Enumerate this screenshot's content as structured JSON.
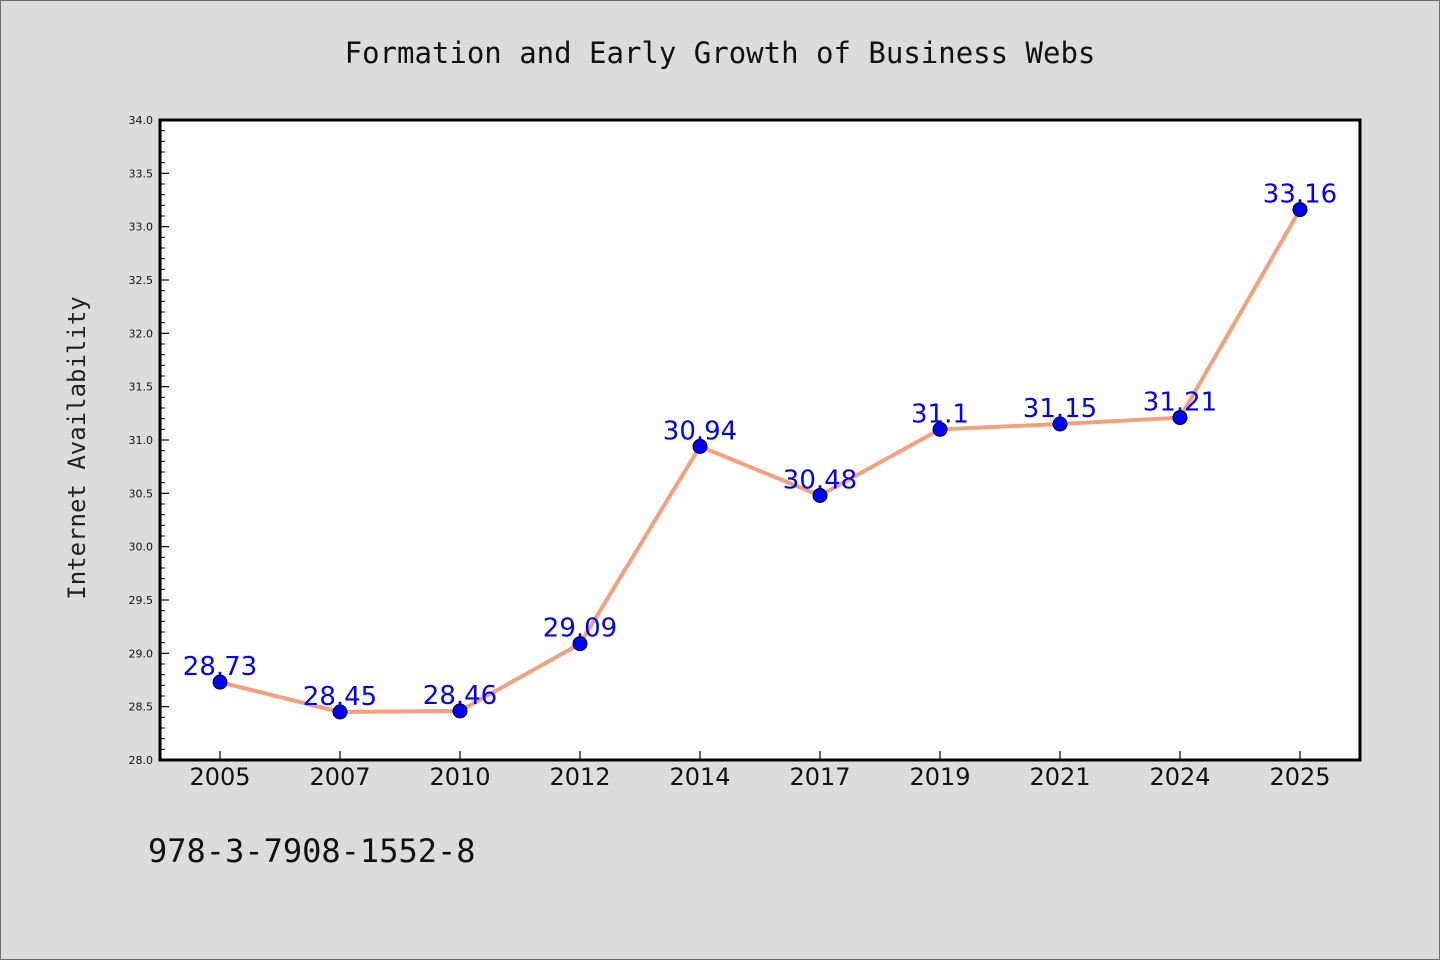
{
  "chart_data": {
    "type": "line",
    "title": "Formation and Early Growth of Business Webs",
    "xlabel": "",
    "ylabel": "Internet Availability",
    "categories": [
      "2005",
      "2007",
      "2010",
      "2012",
      "2014",
      "2017",
      "2019",
      "2021",
      "2024",
      "2025"
    ],
    "series": [
      {
        "values": [
          28.73,
          28.45,
          28.46,
          29.09,
          30.94,
          30.48,
          31.1,
          31.15,
          31.21,
          33.16
        ],
        "labels": [
          "28.73",
          "28.45",
          "28.46",
          "29.09",
          "30.94",
          "30.48",
          "31.1",
          "31.15",
          "31.21",
          "33.16"
        ],
        "line_color": "#f4a07e",
        "marker_color": "#0000ff"
      }
    ],
    "ylim": [
      28.0,
      34.0
    ],
    "yticks": [
      "28.0",
      "28.5",
      "29.0",
      "29.5",
      "30.0",
      "30.5",
      "31.0",
      "31.5",
      "32.0",
      "32.5",
      "33.0",
      "33.5",
      "34.0"
    ],
    "grid": false,
    "legend": "none"
  },
  "footer": {
    "isbn": "978-3-7908-1552-8"
  }
}
